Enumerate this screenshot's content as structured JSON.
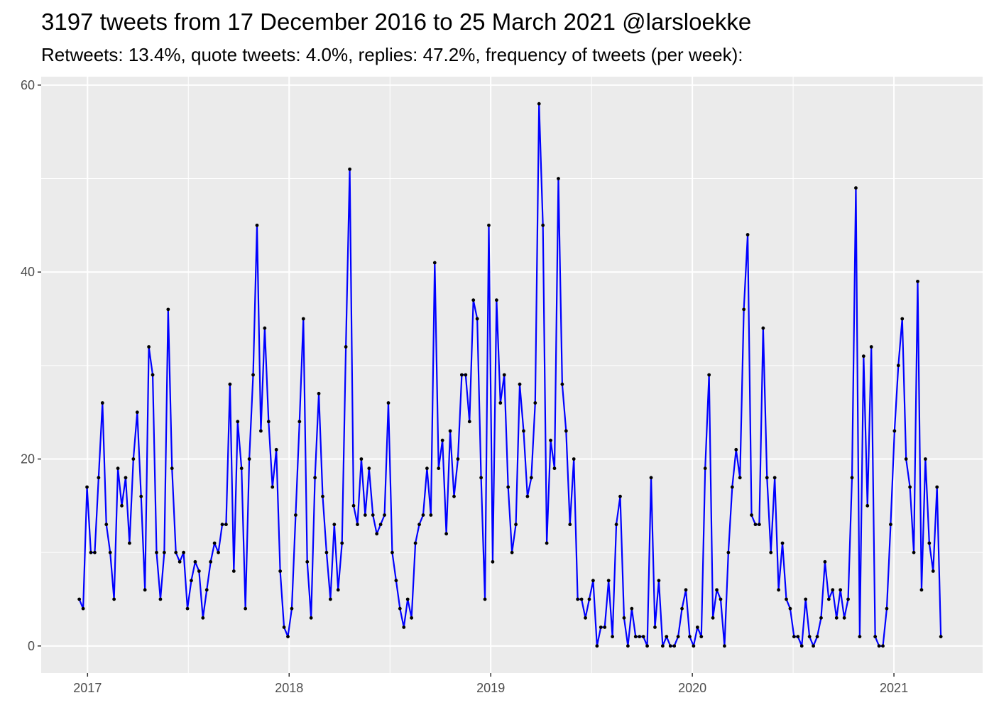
{
  "title": "3197 tweets from 17 December 2016 to 25 March 2021 @larsloekke",
  "subtitle": "Retweets: 13.4%, quote tweets: 4.0%, replies: 47.2%, frequency of tweets (per week):",
  "chart_data": {
    "type": "line",
    "xlabel": "",
    "ylabel": "",
    "ylim": [
      -2.9,
      60.9
    ],
    "xlim": [
      2016.77,
      2021.44
    ],
    "grid": true,
    "colors": {
      "line": "#0000ff",
      "point": "#000000",
      "panel": "#ebebeb",
      "grid": "#ffffff"
    },
    "x_ticks": [
      {
        "value": 2017,
        "label": "2017"
      },
      {
        "value": 2018,
        "label": "2018"
      },
      {
        "value": 2019,
        "label": "2019"
      },
      {
        "value": 2020,
        "label": "2020"
      },
      {
        "value": 2021,
        "label": "2021"
      }
    ],
    "y_ticks": [
      {
        "value": 0,
        "label": "0"
      },
      {
        "value": 20,
        "label": "20"
      },
      {
        "value": 40,
        "label": "40"
      },
      {
        "value": 60,
        "label": "60"
      }
    ],
    "series": [
      {
        "x_start": 2016.959,
        "x_step_weeks": 1,
        "values": [
          5,
          4,
          17,
          10,
          10,
          18,
          26,
          13,
          10,
          5,
          19,
          15,
          18,
          11,
          20,
          25,
          16,
          6,
          32,
          29,
          10,
          5,
          10,
          36,
          19,
          10,
          9,
          10,
          4,
          7,
          9,
          8,
          3,
          6,
          9,
          11,
          10,
          13,
          13,
          28,
          8,
          24,
          19,
          4,
          20,
          29,
          45,
          23,
          34,
          24,
          17,
          21,
          8,
          2,
          1,
          4,
          14,
          24,
          35,
          9,
          3,
          18,
          27,
          16,
          10,
          5,
          13,
          6,
          11,
          32,
          51,
          15,
          13,
          20,
          14,
          19,
          14,
          12,
          13,
          14,
          26,
          10,
          7,
          4,
          2,
          5,
          3,
          11,
          13,
          14,
          19,
          14,
          41,
          19,
          22,
          12,
          23,
          16,
          20,
          29,
          29,
          24,
          37,
          35,
          18,
          5,
          45,
          9,
          37,
          26,
          29,
          17,
          10,
          13,
          28,
          23,
          16,
          18,
          26,
          58,
          45,
          11,
          22,
          19,
          50,
          28,
          23,
          13,
          20,
          5,
          5,
          3,
          5,
          7,
          0,
          2,
          2,
          7,
          1,
          13,
          16,
          3,
          0,
          4,
          1,
          1,
          1,
          0,
          18,
          2,
          7,
          0,
          1,
          0,
          0,
          1,
          4,
          6,
          1,
          0,
          2,
          1,
          19,
          29,
          3,
          6,
          5,
          0,
          10,
          17,
          21,
          18,
          36,
          44,
          14,
          13,
          13,
          34,
          18,
          10,
          18,
          6,
          11,
          5,
          4,
          1,
          1,
          0,
          5,
          1,
          0,
          1,
          3,
          9,
          5,
          6,
          3,
          6,
          3,
          5,
          18,
          49,
          1,
          31,
          15,
          32,
          1,
          0,
          0,
          4,
          13,
          23,
          30,
          35,
          20,
          17,
          10,
          39,
          6,
          20,
          11,
          8,
          17,
          1
        ]
      }
    ]
  }
}
